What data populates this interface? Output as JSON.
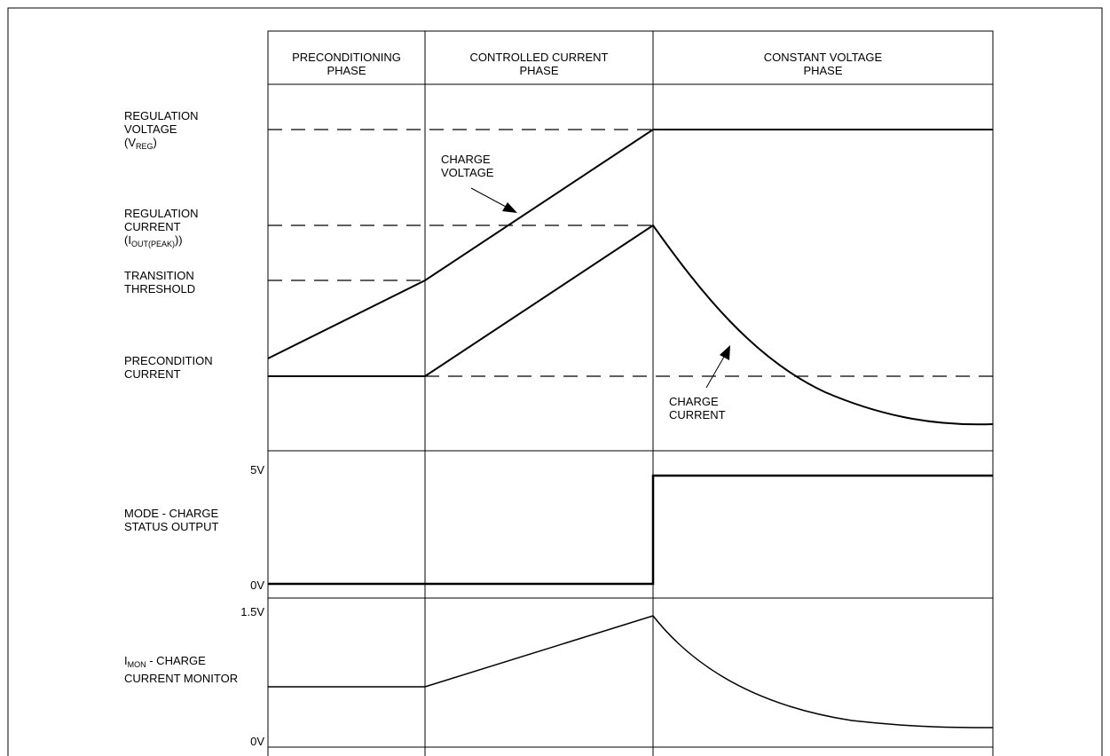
{
  "phases": [
    {
      "line1": "PRECONDITIONING",
      "line2": "PHASE"
    },
    {
      "line1": "CONTROLLED CURRENT",
      "line2": "PHASE"
    },
    {
      "line1": "CONSTANT VOLTAGE",
      "line2": "PHASE"
    }
  ],
  "left_labels": {
    "regulation_voltage": {
      "line1": "REGULATION",
      "line2": "VOLTAGE",
      "sym_open": "(V",
      "sym_sub": "REG",
      "sym_close": ")"
    },
    "regulation_current": {
      "line1": "REGULATION",
      "line2": "CURRENT",
      "sym_open": "(I",
      "sym_sub": "OUT(PEAK)",
      "sym_close": "))"
    },
    "transition_threshold": {
      "line1": "TRANSITION",
      "line2": "THRESHOLD"
    },
    "precondition_current": {
      "line1": "PRECONDITION",
      "line2": "CURRENT"
    },
    "mode_status": {
      "line1": "MODE - CHARGE",
      "line2": "STATUS OUTPUT"
    },
    "imon": {
      "sym": "I",
      "sym_sub": "MON",
      "line1_rest": " - CHARGE",
      "line2": "CURRENT MONITOR"
    }
  },
  "annotations": {
    "charge_voltage": {
      "line1": "CHARGE",
      "line2": "VOLTAGE"
    },
    "charge_current": {
      "line1": "CHARGE",
      "line2": "CURRENT"
    }
  },
  "axis_ticks": {
    "mode_high": "5V",
    "mode_low": "0V",
    "imon_high": "1.5V",
    "imon_low": "0V"
  },
  "colors": {
    "line": "#000000",
    "background": "#ffffff"
  }
}
